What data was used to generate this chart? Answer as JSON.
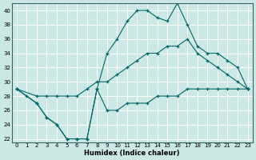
{
  "xlabel": "Humidex (Indice chaleur)",
  "bg_color": "#cce8e4",
  "grid_color": "#ffffff",
  "line_color": "#006666",
  "ylim": [
    22,
    40
  ],
  "xlim": [
    -0.5,
    23.5
  ],
  "yticks": [
    22,
    24,
    26,
    28,
    30,
    32,
    34,
    36,
    38,
    40
  ],
  "xticks": [
    0,
    1,
    2,
    3,
    4,
    5,
    6,
    7,
    8,
    9,
    10,
    11,
    12,
    13,
    14,
    15,
    16,
    17,
    18,
    19,
    20,
    21,
    22,
    23
  ],
  "line1_x": [
    0,
    1,
    2,
    3,
    4,
    5,
    6,
    7,
    8,
    9,
    10,
    11,
    12,
    13,
    14,
    15,
    16,
    17,
    18,
    19,
    20,
    21,
    22,
    23
  ],
  "line1_y": [
    29,
    28,
    27,
    25,
    24,
    22,
    22,
    22,
    29,
    26,
    26,
    27,
    27,
    27,
    28,
    28,
    28,
    29,
    29,
    29,
    29,
    29,
    29,
    29
  ],
  "line2_x": [
    0,
    2,
    3,
    4,
    5,
    6,
    7,
    8,
    9,
    10,
    11,
    12,
    13,
    14,
    15,
    16,
    17,
    18,
    19,
    20,
    21,
    22,
    23
  ],
  "line2_y": [
    29,
    28,
    28,
    28,
    28,
    28,
    29,
    30,
    30,
    31,
    32,
    33,
    34,
    34,
    35,
    35,
    36,
    34,
    33,
    32,
    31,
    30,
    29
  ],
  "line3_x": [
    0,
    2,
    3,
    4,
    5,
    6,
    7,
    8,
    9,
    10,
    11,
    12,
    13,
    14,
    15,
    16,
    17,
    18,
    19,
    20,
    21,
    22,
    23
  ],
  "line3_y": [
    29,
    27,
    25,
    24,
    22,
    22,
    22,
    29,
    34,
    36,
    38.5,
    40,
    40,
    39,
    38.5,
    41,
    38,
    35,
    34,
    34,
    33,
    32,
    29
  ]
}
